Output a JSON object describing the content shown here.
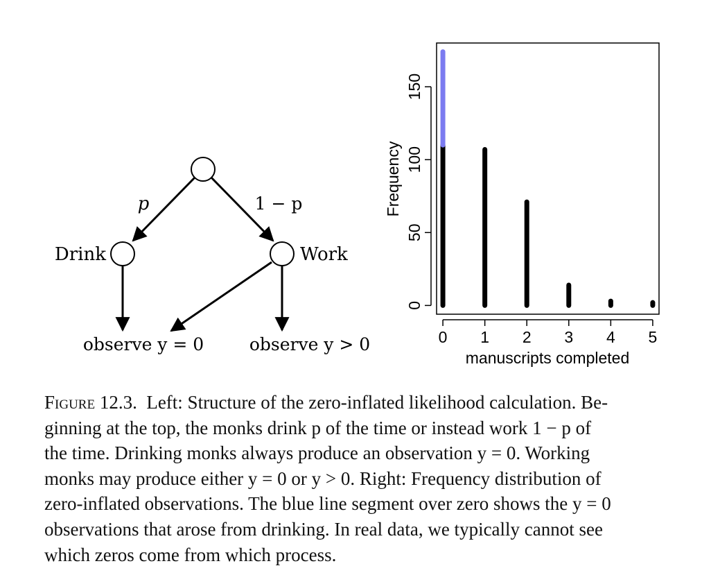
{
  "diagram": {
    "edge_left_label": "p",
    "edge_right_label": "1 − p",
    "drink_label": "Drink",
    "work_label": "Work",
    "observe_zero_label": "observe y = 0",
    "observe_positive_label": "observe y > 0"
  },
  "chart_data": {
    "type": "bar",
    "xlabel": "manuscripts completed",
    "ylabel": "Frequency",
    "x_ticks": [
      "0",
      "1",
      "2",
      "3",
      "4",
      "5"
    ],
    "y_ticks": [
      "0",
      "50",
      "100",
      "150"
    ],
    "xlim": [
      -0.15,
      5.15
    ],
    "ylim": [
      -6,
      180
    ],
    "categories": [
      0,
      1,
      2,
      3,
      4,
      5
    ],
    "series": [
      {
        "values": [
          110,
          107,
          71,
          14,
          3,
          2
        ],
        "color": "#000000"
      },
      {
        "values": [
          64,
          0,
          0,
          0,
          0,
          0
        ],
        "color": "#7b7bf0"
      }
    ]
  },
  "caption": {
    "label": "Figure 12.3.",
    "lines": [
      "Left: Structure of the zero-inflated likelihood calculation. Be-",
      "ginning at the top, the monks drink p of the time or instead work 1 − p of",
      "the time. Drinking monks always produce an observation y = 0. Working",
      "monks may produce either y = 0 or y > 0. Right: Frequency distribution of",
      "zero-inflated observations. The blue line segment over zero shows the y = 0",
      "observations that arose from drinking. In real data, we typically cannot see",
      "which zeros come from which process."
    ]
  }
}
